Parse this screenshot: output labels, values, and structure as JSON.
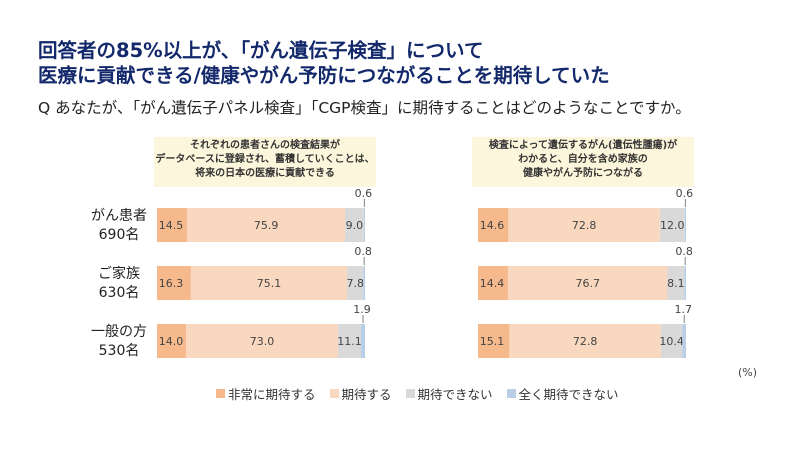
{
  "title_line1": "回答者の85%以上が、「がん遺伝子検査」について",
  "title_line2": "医療に貢献できる/健康やがん予防につながることを期待していた",
  "question": "Q あなたが、「がん遺伝子パネル検査」「CGP検査」に期待することはどのようなことですか。",
  "colors": {
    "very_expect": "#f5b98c",
    "expect": "#f9d8bf",
    "not_expect": "#d9d9d9",
    "not_at_all": "#b9cfe8",
    "title": "#13296b",
    "panel_bg": "#fcf7dc"
  },
  "groups": [
    {
      "name": "がん患者",
      "n": "690名"
    },
    {
      "name": "ご家族",
      "n": "630名"
    },
    {
      "name": "一般の方",
      "n": "530名"
    }
  ],
  "unit": "(%)",
  "chart_data": [
    {
      "type": "bar",
      "orientation": "horizontal",
      "stacked": "100%",
      "title_lines": [
        "それぞれの患者さんの検査結果が",
        "データベースに登録され、蓄積していくことは、",
        "将来の日本の医療に貢献できる"
      ],
      "categories": [
        "がん患者 690名",
        "ご家族 630名",
        "一般の方 530名"
      ],
      "series": [
        {
          "name": "非常に期待する",
          "values": [
            14.5,
            16.3,
            14.0
          ]
        },
        {
          "name": "期待する",
          "values": [
            75.9,
            75.1,
            73.0
          ]
        },
        {
          "name": "期待できない",
          "values": [
            9.0,
            7.8,
            11.1
          ]
        },
        {
          "name": "全く期待できない",
          "values": [
            0.6,
            0.8,
            1.9
          ]
        }
      ],
      "xlim": [
        0,
        100
      ]
    },
    {
      "type": "bar",
      "orientation": "horizontal",
      "stacked": "100%",
      "title_lines": [
        "検査によって遺伝するがん(遺伝性腫瘍)が",
        "わかると、自分を含め家族の",
        "健康やがん予防につながる"
      ],
      "categories": [
        "がん患者 690名",
        "ご家族 630名",
        "一般の方 530名"
      ],
      "series": [
        {
          "name": "非常に期待する",
          "values": [
            14.6,
            14.4,
            15.1
          ]
        },
        {
          "name": "期待する",
          "values": [
            72.8,
            76.7,
            72.8
          ]
        },
        {
          "name": "期待できない",
          "values": [
            12.0,
            8.1,
            10.4
          ]
        },
        {
          "name": "全く期待できない",
          "values": [
            0.6,
            0.8,
            1.7
          ]
        }
      ],
      "xlim": [
        0,
        100
      ]
    }
  ]
}
